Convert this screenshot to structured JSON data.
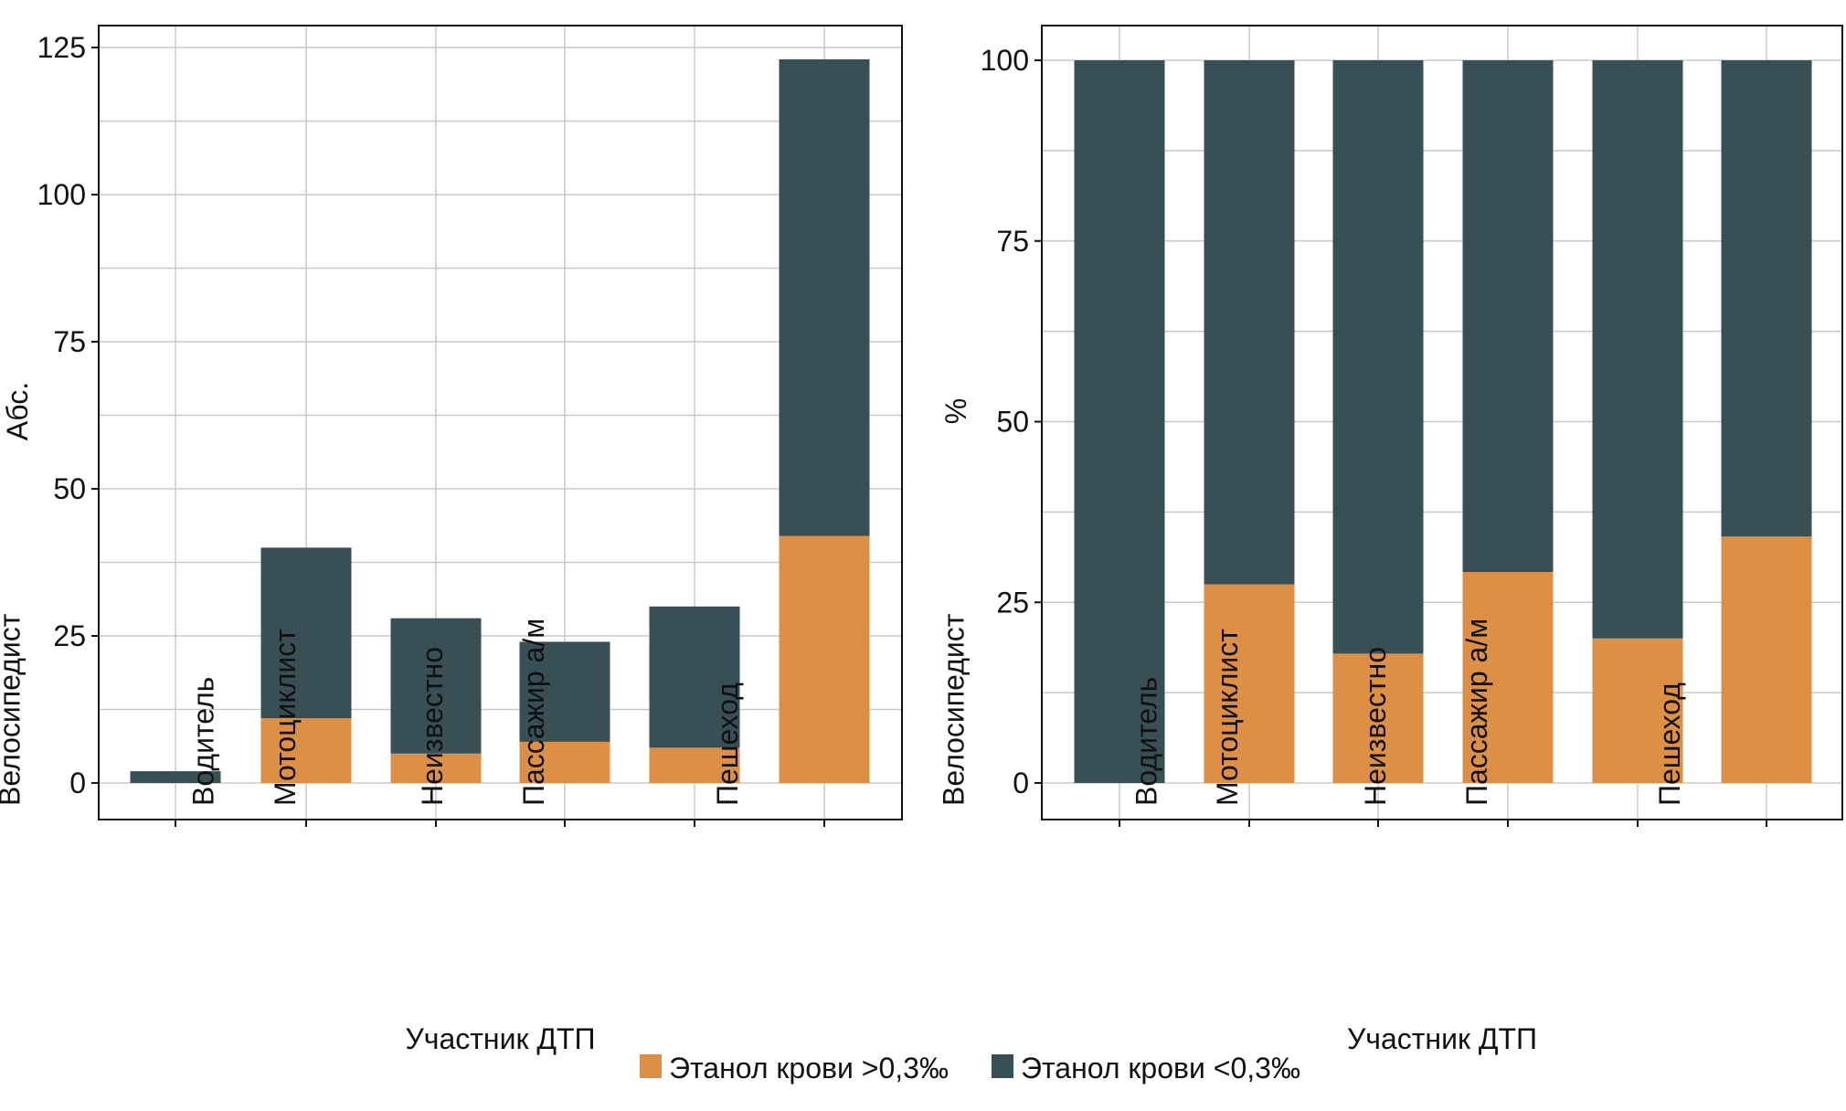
{
  "chart_data": [
    {
      "type": "bar",
      "stacked": true,
      "categories": [
        "Велосипедист",
        "Водитель",
        "Мотоциклист",
        "Неизвестно",
        "Пассажир а/м",
        "Пешеход"
      ],
      "series": [
        {
          "name": "Этанол крови >0,3‰",
          "color": "#DD8F45",
          "values": [
            0,
            11,
            5,
            7,
            6,
            42
          ]
        },
        {
          "name": "Этанол крови <0,3‰",
          "color": "#374F55",
          "values": [
            2,
            29,
            23,
            17,
            24,
            81
          ]
        }
      ],
      "xlabel": "Участник ДТП",
      "ylabel": "Абс.",
      "ylim": [
        -6,
        128
      ],
      "yticks": [
        "0",
        "25",
        "50",
        "75",
        "100",
        "125"
      ],
      "grid": true
    },
    {
      "type": "bar",
      "stacked": true,
      "categories": [
        "Велосипедист",
        "Водитель",
        "Мотоциклист",
        "Неизвестно",
        "Пассажир а/м",
        "Пешеход"
      ],
      "series": [
        {
          "name": "Этанол крови >0,3‰",
          "color": "#DD8F45",
          "values": [
            0,
            27.5,
            17.9,
            29.2,
            20.0,
            34.1
          ]
        },
        {
          "name": "Этанол крови <0,3‰",
          "color": "#374F55",
          "values": [
            100,
            72.5,
            82.1,
            70.8,
            80.0,
            65.9
          ]
        }
      ],
      "xlabel": "Участник ДТП",
      "ylabel": "%",
      "ylim": [
        -5,
        105
      ],
      "yticks": [
        "0",
        "25",
        "50",
        "75",
        "100"
      ],
      "grid": true
    }
  ],
  "legend": {
    "position": "bottom",
    "items": [
      {
        "label": "Этанол крови >0,3‰",
        "color": "#DD8F45"
      },
      {
        "label": "Этанол крови <0,3‰",
        "color": "#374F55"
      }
    ]
  }
}
